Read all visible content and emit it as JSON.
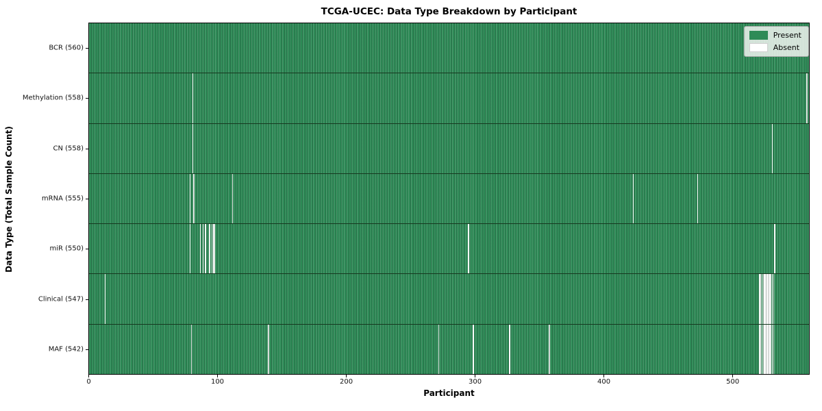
{
  "chart_data": {
    "type": "heatmap",
    "title": "TCGA-UCEC: Data Type Breakdown by Participant",
    "xlabel": "Participant",
    "ylabel": "Data Type (Total Sample Count)",
    "x_ticks": [
      0,
      100,
      200,
      300,
      400,
      500
    ],
    "x_range": [
      0,
      560
    ],
    "n_participants": 560,
    "legend": {
      "present": "Present",
      "absent": "Absent"
    },
    "colors": {
      "present": "#2e8b57",
      "absent": "#ffffff"
    },
    "value_encoding": "1 = data type present for participant (green), 0 = absent (white stripe)",
    "rows": [
      {
        "data_type": "BCR",
        "total_samples": 560,
        "label": "BCR (560)",
        "absent_participants": []
      },
      {
        "data_type": "Methylation",
        "total_samples": 558,
        "label": "Methylation (558)",
        "absent_participants": [
          80,
          557
        ]
      },
      {
        "data_type": "CN",
        "total_samples": 558,
        "label": "CN (558)",
        "absent_participants": [
          80,
          530
        ]
      },
      {
        "data_type": "mRNA",
        "total_samples": 555,
        "label": "mRNA (555)",
        "absent_participants": [
          78,
          81,
          111,
          422,
          472
        ]
      },
      {
        "data_type": "miR",
        "total_samples": 550,
        "label": "miR (550)",
        "absent_participants": [
          78,
          86,
          88,
          90,
          93,
          95,
          96,
          97,
          294,
          532
        ]
      },
      {
        "data_type": "Clinical",
        "total_samples": 547,
        "label": "Clinical (547)",
        "absent_participants": [
          12,
          520,
          521,
          522,
          523,
          524,
          525,
          526,
          527,
          528,
          529,
          530,
          531
        ]
      },
      {
        "data_type": "MAF",
        "total_samples": 542,
        "label": "MAF (542)",
        "absent_participants": [
          79,
          139,
          271,
          298,
          326,
          357,
          520,
          521,
          522,
          523,
          524,
          525,
          526,
          527,
          528,
          529,
          530,
          531
        ]
      }
    ]
  }
}
